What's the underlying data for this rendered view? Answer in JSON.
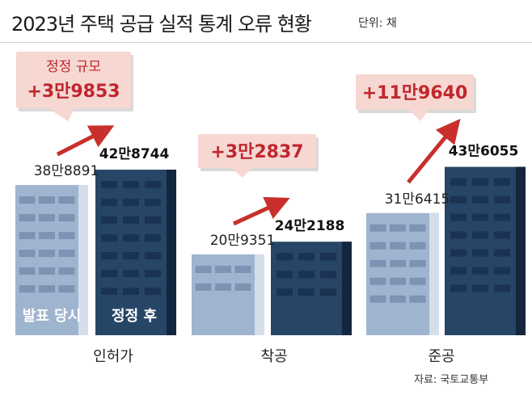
{
  "title": "2023년 주택 공급 실적 통계 오류 현황",
  "unit": "단위: 채",
  "source": "자료: 국토교통부",
  "colors": {
    "before_bar": "#9fb4cf",
    "after_bar": "#274566",
    "callout_fill": "#f6d7d2",
    "diff_text": "#c0262d",
    "arrow": "#c9302c"
  },
  "chart_data": {
    "type": "bar",
    "categories": [
      "인허가",
      "착공",
      "준공"
    ],
    "series": [
      {
        "name": "발표 당시",
        "values": [
          388891,
          209351,
          316415
        ],
        "labels": [
          "38만8891",
          "20만9351",
          "31만6415"
        ]
      },
      {
        "name": "정정 후",
        "values": [
          428744,
          242188,
          436055
        ],
        "labels": [
          "42만8744",
          "24만2188",
          "43만6055"
        ]
      }
    ],
    "differences": [
      {
        "label": "정정 규모",
        "value": 39853,
        "text": "+3만9853"
      },
      {
        "label": "",
        "value": 32837,
        "text": "+3만2837"
      },
      {
        "label": "",
        "value": 119640,
        "text": "+11만9640"
      }
    ],
    "legend_in_bars": true,
    "grid": false
  }
}
